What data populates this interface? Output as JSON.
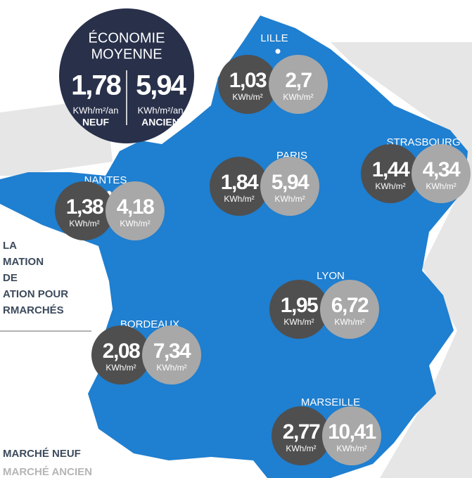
{
  "summary": {
    "title_lines": [
      "ÉCONOMIE",
      "MOYENNE"
    ],
    "new": {
      "value": "1,78",
      "unit": "KWh/m²/an",
      "label": "NEUF"
    },
    "old": {
      "value": "5,94",
      "unit": "KWh/m²/an",
      "label": "ANCIEN"
    }
  },
  "unit": "KWh/m²",
  "cities": [
    {
      "name": "LILLE",
      "new": "1,03",
      "old": "2,7"
    },
    {
      "name": "STRASBOURG",
      "new": "1,44",
      "old": "4,34"
    },
    {
      "name": "PARIS",
      "new": "1,84",
      "old": "5,94"
    },
    {
      "name": "NANTES",
      "new": "1,38",
      "old": "4,18"
    },
    {
      "name": "LYON",
      "new": "1,95",
      "old": "6,72"
    },
    {
      "name": "BORDEAUX",
      "new": "2,08",
      "old": "7,34"
    },
    {
      "name": "MARSEILLE",
      "new": "2,77",
      "old": "10,41"
    }
  ],
  "side_text": [
    "LA",
    "MATION",
    "DE",
    "ATION POUR",
    "RMARCHÉS"
  ],
  "legend": [
    "MARCHÉ NEUF",
    "MARCHÉ ANCIEN"
  ]
}
